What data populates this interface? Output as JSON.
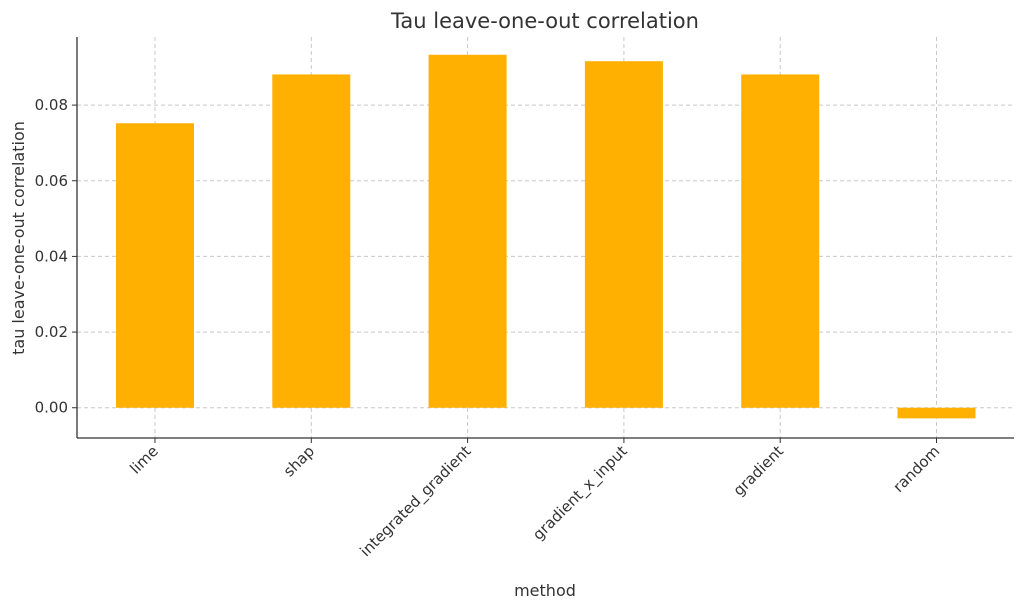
{
  "chart_data": {
    "type": "bar",
    "title": "Tau leave-one-out correlation",
    "xlabel": "method",
    "ylabel": "tau leave-one-out correlation",
    "categories": [
      "lime",
      "shap",
      "integrated_gradient",
      "gradient_x_input",
      "gradient",
      "random"
    ],
    "values": [
      0.0752,
      0.0881,
      0.0933,
      0.0916,
      0.0881,
      -0.0028
    ],
    "ylim": [
      -0.008,
      0.098
    ],
    "yticks": [
      0.0,
      0.02,
      0.04,
      0.06,
      0.08
    ],
    "ytick_labels": [
      "0.00",
      "0.02",
      "0.04",
      "0.06",
      "0.08"
    ],
    "grid": true,
    "bar_color": "#ffb000",
    "legend": "none"
  }
}
